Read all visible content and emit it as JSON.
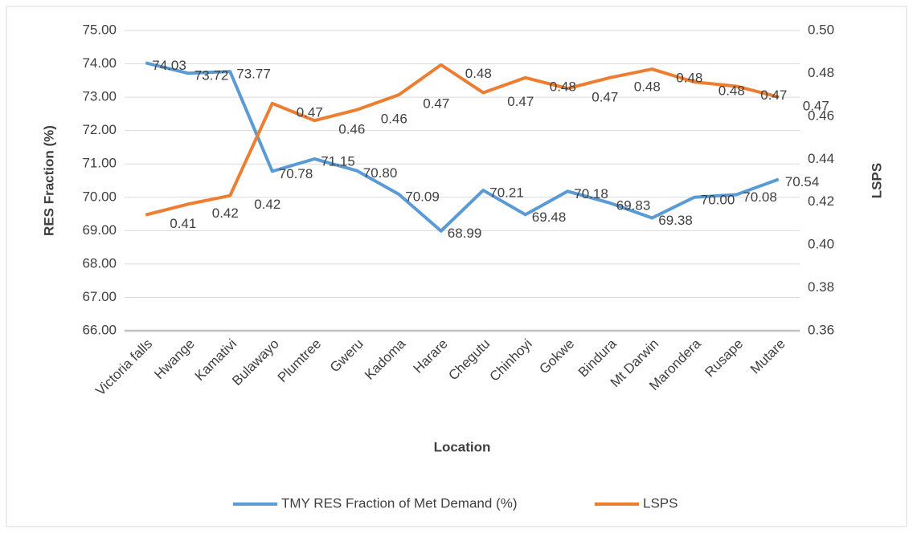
{
  "chart_data": {
    "type": "line",
    "x_label": "Location",
    "y_label": "RES Fraction (%)",
    "y2_label": "LSPS",
    "categories": [
      "Victoria falls",
      "Hwange",
      "Kamativi",
      "Bulawayo",
      "Plumtree",
      "Gweru",
      "Kadoma",
      "Harare",
      "Chegutu",
      "Chinhoyi",
      "Gokwe",
      "Bindura",
      "Mt Darwin",
      "Marondera",
      "Rusape",
      "Mutare"
    ],
    "series": [
      {
        "name": "TMY RES Fraction of Met Demand (%)",
        "color": "#5b9bd5",
        "axis": "y",
        "values": [
          74.03,
          73.72,
          73.77,
          70.78,
          71.15,
          70.8,
          70.09,
          68.99,
          70.21,
          69.48,
          70.18,
          69.83,
          69.38,
          70,
          70.08,
          70.54
        ],
        "value_labels": [
          "74.03",
          "73.72",
          "73.77",
          "70.78",
          "71.15",
          "70.80",
          "70.09",
          "68.99",
          "70.21",
          "69.48",
          "70.18",
          "69.83",
          "69.38",
          "70.00",
          "70.08",
          "70.54"
        ]
      },
      {
        "name": "LSPS",
        "color": "#ed7d31",
        "axis": "y2",
        "values": [
          0.414,
          0.419,
          0.423,
          0.466,
          0.458,
          0.463,
          0.47,
          0.484,
          0.471,
          0.478,
          0.473,
          0.478,
          0.482,
          0.476,
          0.474,
          0.469
        ],
        "value_labels": [
          "0.41",
          "0.42",
          "0.42",
          "0.47",
          "0.46",
          "0.46",
          "0.47",
          "0.48",
          "0.47",
          "0.48",
          "0.47",
          "0.48",
          "0.48",
          "0.48",
          "0.47",
          "0.47"
        ]
      }
    ],
    "ylim": [
      66,
      75
    ],
    "yticks": [
      {
        "value": 66,
        "label": "66.00"
      },
      {
        "value": 67,
        "label": "67.00"
      },
      {
        "value": 68,
        "label": "68.00"
      },
      {
        "value": 69,
        "label": "69.00"
      },
      {
        "value": 70,
        "label": "70.00"
      },
      {
        "value": 71,
        "label": "71.00"
      },
      {
        "value": 72,
        "label": "72.00"
      },
      {
        "value": 73,
        "label": "73.00"
      },
      {
        "value": 74,
        "label": "74.00"
      },
      {
        "value": 75,
        "label": "75.00"
      }
    ],
    "y2lim": [
      0.36,
      0.5
    ],
    "y2ticks": [
      {
        "value": 0.36,
        "label": "0.36"
      },
      {
        "value": 0.38,
        "label": "0.38"
      },
      {
        "value": 0.4,
        "label": "0.40"
      },
      {
        "value": 0.42,
        "label": "0.42"
      },
      {
        "value": 0.44,
        "label": "0.44"
      },
      {
        "value": 0.46,
        "label": "0.46"
      },
      {
        "value": 0.48,
        "label": "0.48"
      },
      {
        "value": 0.5,
        "label": "0.50"
      }
    ],
    "grid": true,
    "legend": "bottom"
  }
}
